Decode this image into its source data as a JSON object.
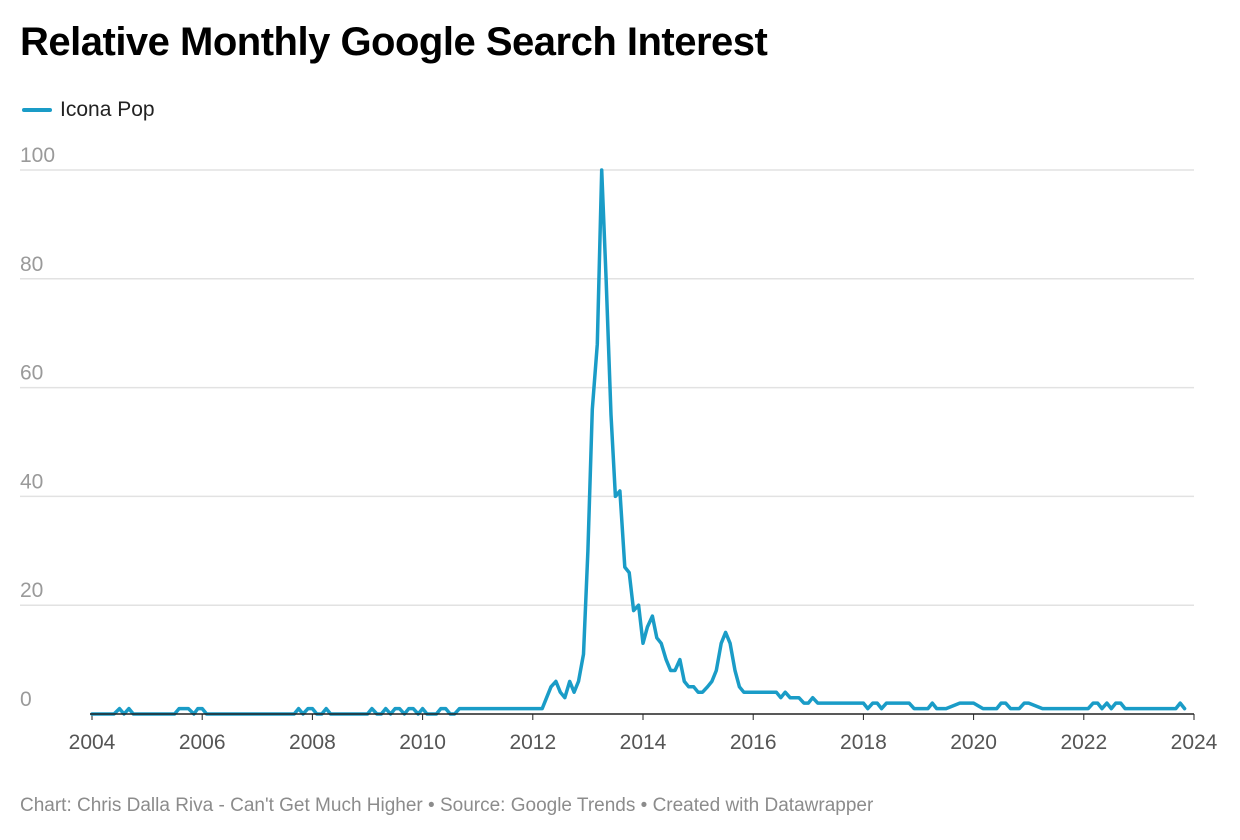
{
  "title": "Relative Monthly Google Search Interest",
  "footer": {
    "text": "Chart: Chris Dalla Riva - Can't Get Much Higher • Source: Google Trends • Created with Datawrapper"
  },
  "colors": {
    "series": "#1a9cc7",
    "grid": "#e2e2e2",
    "axis": "#222222"
  },
  "chart_data": {
    "type": "line",
    "title": "Relative Monthly Google Search Interest",
    "xlabel": "",
    "ylabel": "",
    "xlim": [
      2004,
      2024
    ],
    "ylim": [
      0,
      100
    ],
    "y_ticks": [
      "0",
      "20",
      "40",
      "60",
      "80",
      "100"
    ],
    "x_ticks": [
      "2004",
      "2006",
      "2008",
      "2010",
      "2012",
      "2014",
      "2016",
      "2018",
      "2020",
      "2022",
      "2024"
    ],
    "grid": "horizontal",
    "legend": "top-left",
    "series": [
      {
        "name": "Icona Pop",
        "color": "#1a9cc7",
        "x": [
          2004.0,
          2004.1,
          2004.25,
          2004.4,
          2004.5,
          2004.58,
          2004.67,
          2004.75,
          2004.85,
          2005.0,
          2005.2,
          2005.4,
          2005.5,
          2005.58,
          2005.67,
          2005.75,
          2005.85,
          2005.92,
          2006.0,
          2006.08,
          2006.17,
          2006.3,
          2006.5,
          2007.0,
          2007.5,
          2007.67,
          2007.75,
          2007.83,
          2007.92,
          2008.0,
          2008.08,
          2008.17,
          2008.25,
          2008.33,
          2008.42,
          2008.5,
          2008.75,
          2009.0,
          2009.08,
          2009.17,
          2009.25,
          2009.33,
          2009.42,
          2009.5,
          2009.58,
          2009.67,
          2009.75,
          2009.83,
          2009.92,
          2010.0,
          2010.08,
          2010.17,
          2010.25,
          2010.33,
          2010.42,
          2010.5,
          2010.58,
          2010.67,
          2010.75,
          2011.0,
          2011.5,
          2012.0,
          2012.17,
          2012.25,
          2012.33,
          2012.42,
          2012.5,
          2012.58,
          2012.67,
          2012.75,
          2012.83,
          2012.92,
          2013.0,
          2013.08,
          2013.17,
          2013.25,
          2013.33,
          2013.42,
          2013.5,
          2013.58,
          2013.67,
          2013.75,
          2013.83,
          2013.92,
          2014.0,
          2014.08,
          2014.17,
          2014.25,
          2014.33,
          2014.42,
          2014.5,
          2014.58,
          2014.67,
          2014.75,
          2014.83,
          2014.92,
          2015.0,
          2015.08,
          2015.17,
          2015.25,
          2015.33,
          2015.42,
          2015.5,
          2015.58,
          2015.67,
          2015.75,
          2015.83,
          2015.92,
          2016.0,
          2016.25,
          2016.42,
          2016.5,
          2016.58,
          2016.67,
          2016.83,
          2016.92,
          2017.0,
          2017.08,
          2017.17,
          2017.25,
          2017.5,
          2017.75,
          2017.92,
          2018.0,
          2018.08,
          2018.17,
          2018.25,
          2018.33,
          2018.42,
          2018.5,
          2018.58,
          2018.67,
          2018.75,
          2018.83,
          2018.92,
          2019.0,
          2019.08,
          2019.17,
          2019.25,
          2019.33,
          2019.5,
          2019.75,
          2019.83,
          2019.92,
          2020.0,
          2020.17,
          2020.25,
          2020.33,
          2020.42,
          2020.5,
          2020.58,
          2020.67,
          2020.75,
          2020.83,
          2020.92,
          2021.0,
          2021.25,
          2021.5,
          2021.75,
          2021.92,
          2022.0,
          2022.08,
          2022.17,
          2022.25,
          2022.33,
          2022.42,
          2022.5,
          2022.58,
          2022.67,
          2022.75,
          2022.83,
          2023.0,
          2023.25,
          2023.5,
          2023.67,
          2023.75,
          2023.83
        ],
        "values": [
          0,
          0,
          0,
          0,
          1,
          0,
          1,
          0,
          0,
          0,
          0,
          0,
          0,
          1,
          1,
          1,
          0,
          1,
          1,
          0,
          0,
          0,
          0,
          0,
          0,
          0,
          1,
          0,
          1,
          1,
          0,
          0,
          1,
          0,
          0,
          0,
          0,
          0,
          1,
          0,
          0,
          1,
          0,
          1,
          1,
          0,
          1,
          1,
          0,
          1,
          0,
          0,
          0,
          1,
          1,
          0,
          0,
          1,
          1,
          1,
          1,
          1,
          1,
          3,
          5,
          6,
          4,
          3,
          6,
          4,
          6,
          11,
          30,
          56,
          68,
          100,
          80,
          55,
          40,
          41,
          27,
          26,
          19,
          20,
          13,
          16,
          18,
          14,
          13,
          10,
          8,
          8,
          10,
          6,
          5,
          5,
          4,
          4,
          5,
          6,
          8,
          13,
          15,
          13,
          8,
          5,
          4,
          4,
          4,
          4,
          4,
          3,
          4,
          3,
          3,
          2,
          2,
          3,
          2,
          2,
          2,
          2,
          2,
          2,
          1,
          2,
          2,
          1,
          2,
          2,
          2,
          2,
          2,
          2,
          1,
          1,
          1,
          1,
          2,
          1,
          1,
          2,
          2,
          2,
          2,
          1,
          1,
          1,
          1,
          2,
          2,
          1,
          1,
          1,
          2,
          2,
          1,
          1,
          1,
          1,
          1,
          1,
          2,
          2,
          1,
          2,
          1,
          2,
          2,
          1,
          1,
          1,
          1,
          1,
          1,
          2,
          1
        ]
      }
    ]
  }
}
